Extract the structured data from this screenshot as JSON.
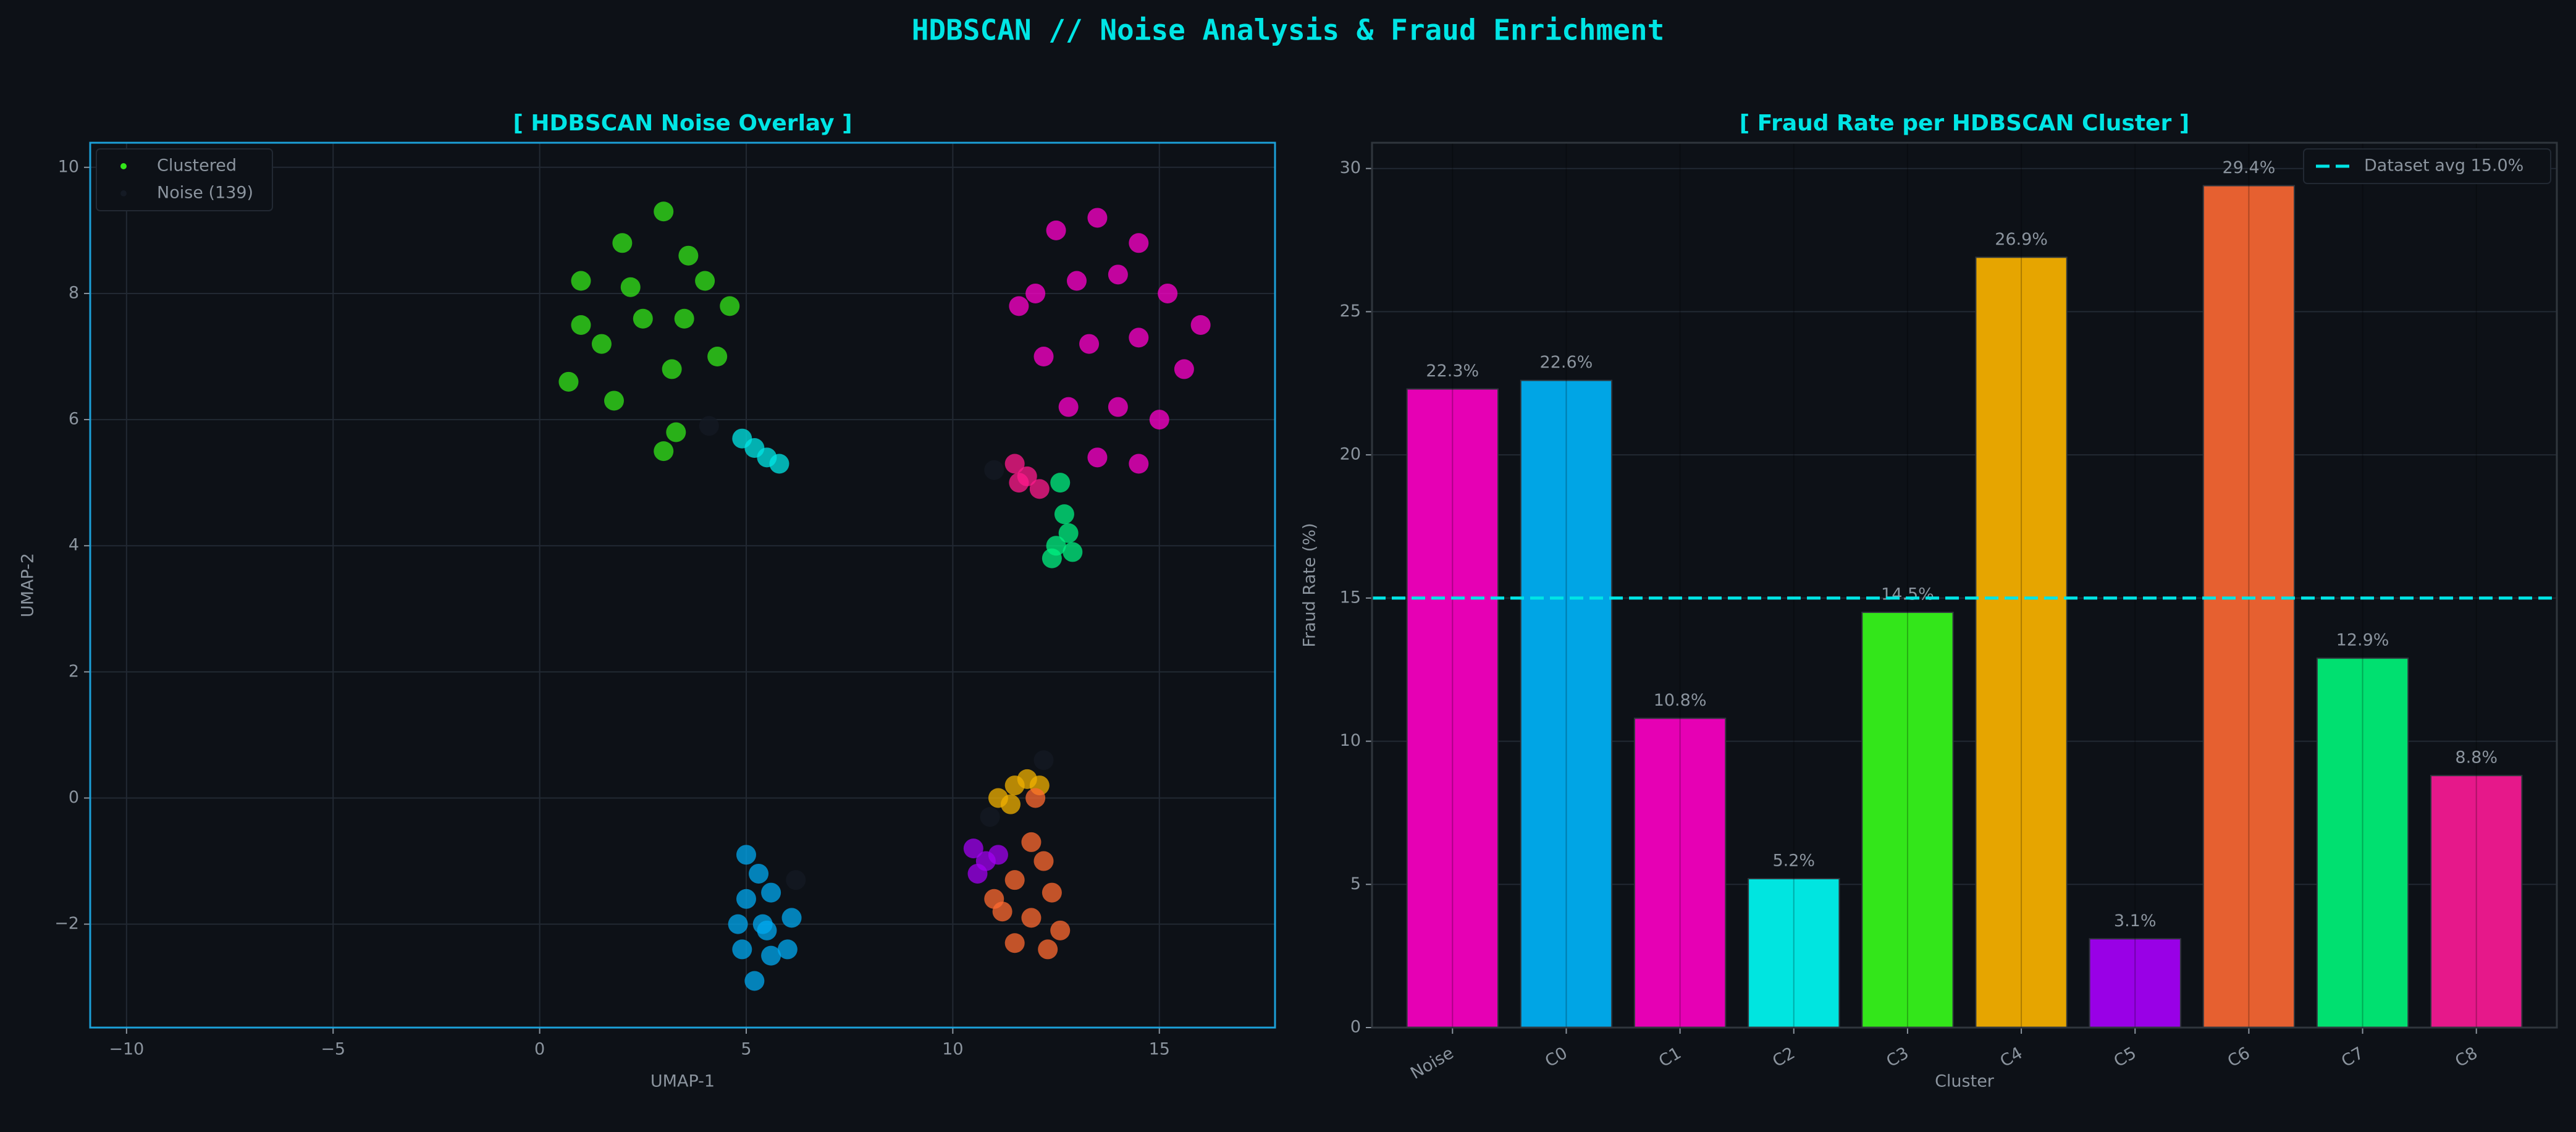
{
  "title": "HDBSCAN  //  Noise Analysis & Fraud Enrichment",
  "chart_data": [
    {
      "type": "scatter",
      "title": "[ HDBSCAN  Noise Overlay ]",
      "x_label": "UMAP-1",
      "y_label": "UMAP-2",
      "xlim": [
        -10.88,
        17.8
      ],
      "ylim": [
        -3.64,
        10.39
      ],
      "xticks": [
        {
          "value": -10,
          "label": "−10"
        },
        {
          "value": -5,
          "label": "−5"
        },
        0,
        5,
        10,
        15
      ],
      "yticks": [
        {
          "value": -2,
          "label": "−2"
        },
        0,
        2,
        4,
        6,
        8,
        10
      ],
      "grid": true,
      "legend": "upper left",
      "series": [
        {
          "name": "Clustered",
          "color": "#33e61a",
          "groups": [
            {
              "color": "#33e61a",
              "x": [
                1,
                2,
                3,
                3.6,
                1.5,
                2.5,
                3.5,
                4.6,
                0.7,
                1.8,
                3.2,
                4.3,
                3.3,
                3,
                2.2,
                4,
                1
              ],
              "y": [
                8.2,
                8.8,
                9.3,
                8.6,
                7.2,
                7.6,
                7.6,
                7.8,
                6.6,
                6.3,
                6.8,
                7,
                5.8,
                5.5,
                8.1,
                8.2,
                7.5
              ]
            },
            {
              "color": "#00e5e5",
              "x": [
                4.9,
                5.2,
                5.5,
                5.8
              ],
              "y": [
                5.7,
                5.55,
                5.4,
                5.3
              ]
            },
            {
              "color": "#ff00cc",
              "x": [
                12.5,
                13.5,
                14.5,
                12,
                13,
                14,
                15.2,
                16,
                12.2,
                13.3,
                14.5,
                15.6,
                12.8,
                14,
                15,
                13.5,
                14.5,
                11.6
              ],
              "y": [
                9,
                9.2,
                8.8,
                8,
                8.2,
                8.3,
                8,
                7.5,
                7,
                7.2,
                7.3,
                6.8,
                6.2,
                6.2,
                6,
                5.4,
                5.3,
                7.8
              ]
            },
            {
              "color": "#ff1a8c",
              "x": [
                11.5,
                11.8,
                12.1,
                11.6
              ],
              "y": [
                5.3,
                5.1,
                4.9,
                5
              ]
            },
            {
              "color": "#00f080",
              "x": [
                12.6,
                12.7,
                12.5,
                12.9,
                12.8,
                12.4
              ],
              "y": [
                5,
                4.5,
                4,
                3.9,
                4.2,
                3.8
              ]
            },
            {
              "color": "#00a8f0",
              "x": [
                5,
                5.3,
                5,
                5.6,
                4.8,
                5.4,
                6.1,
                4.9,
                5.6,
                5.2,
                6,
                5.5
              ],
              "y": [
                -0.9,
                -1.2,
                -1.6,
                -1.5,
                -2,
                -2,
                -1.9,
                -2.4,
                -2.5,
                -2.9,
                -2.4,
                -2.1
              ]
            },
            {
              "color": "#f0b000",
              "x": [
                11.1,
                11.5,
                11.8,
                12.1,
                11.4
              ],
              "y": [
                0,
                0.2,
                0.3,
                0.2,
                -0.1
              ]
            },
            {
              "color": "#a000f0",
              "x": [
                10.5,
                10.8,
                10.6,
                11.1
              ],
              "y": [
                -0.8,
                -1,
                -1.2,
                -0.9
              ]
            },
            {
              "color": "#ff6a30",
              "x": [
                12,
                11.9,
                12.2,
                11.5,
                12.4,
                11.2,
                11.9,
                12.6,
                11.5,
                12.3,
                11
              ],
              "y": [
                0,
                -0.7,
                -1,
                -1.3,
                -1.5,
                -1.8,
                -1.9,
                -2.1,
                -2.3,
                -2.4,
                -1.6
              ]
            }
          ]
        },
        {
          "name": "Noise (139)",
          "color": "#141a24",
          "groups": [
            {
              "color": "#141a24",
              "x": [
                4.1,
                6.2,
                10.9,
                12.2,
                11
              ],
              "y": [
                5.9,
                -1.3,
                -0.3,
                0.6,
                5.2
              ]
            }
          ]
        }
      ]
    },
    {
      "type": "bar",
      "title": "[ Fraud Rate per HDBSCAN Cluster ]",
      "x_label": "Cluster",
      "y_label": "Fraud Rate (%)",
      "categories": [
        "Noise",
        "C0",
        "C1",
        "C2",
        "C3",
        "C4",
        "C5",
        "C6",
        "C7",
        "C8"
      ],
      "values": [
        22.3,
        22.6,
        10.8,
        5.2,
        14.5,
        26.9,
        3.1,
        29.4,
        12.9,
        8.8
      ],
      "value_labels": [
        "22.3%",
        "22.6%",
        "10.8%",
        "5.2%",
        "14.5%",
        "26.9%",
        "3.1%",
        "29.4%",
        "12.9%",
        "8.8%"
      ],
      "colors": [
        "#e600b4",
        "#00a5e5",
        "#e600b4",
        "#00e5e0",
        "#33e61a",
        "#e6a500",
        "#9900e6",
        "#e66030",
        "#00e070",
        "#e6188a"
      ],
      "ylim": [
        0,
        30.9
      ],
      "yticks": [
        0,
        5,
        10,
        15,
        20,
        25,
        30
      ],
      "grid": true,
      "legend": "upper right",
      "reference": {
        "value": 15.0,
        "label": "Dataset avg 15.0%",
        "color": "#00e5e5"
      }
    }
  ]
}
